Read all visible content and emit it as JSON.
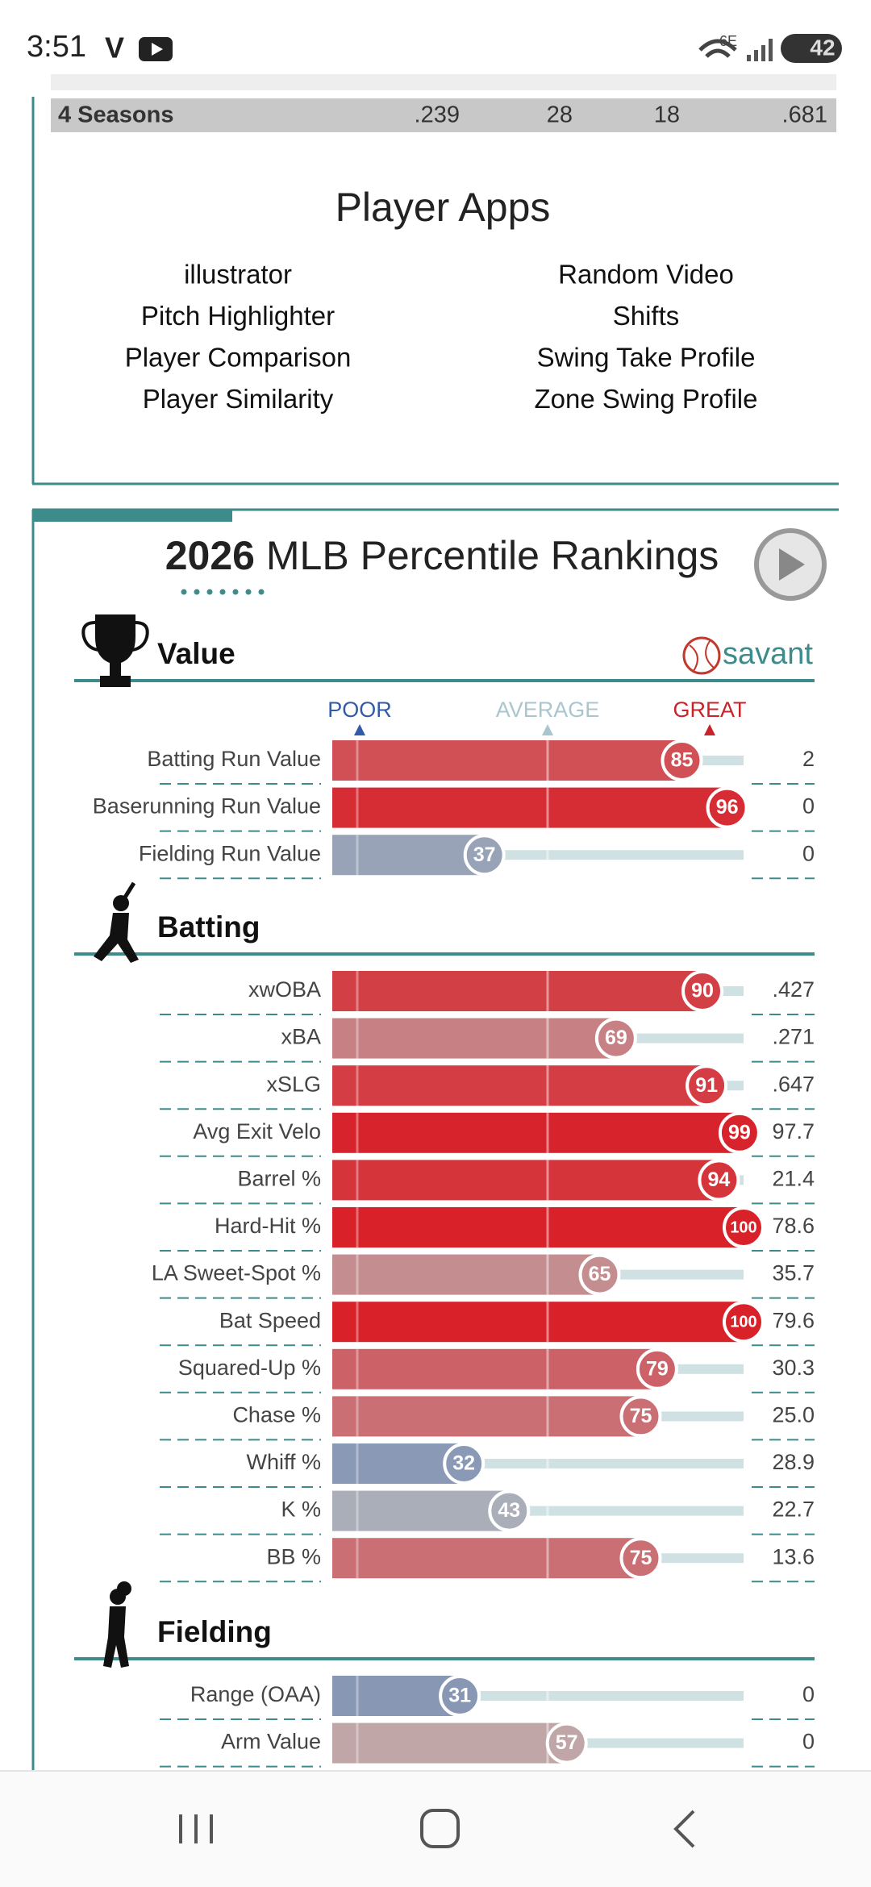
{
  "status_bar": {
    "time": "3:51",
    "network": "6E",
    "battery": "42"
  },
  "stats_table": {
    "row": [
      "4 Seasons",
      ".239",
      "28",
      "18",
      ".681"
    ]
  },
  "player_apps": {
    "title": "Player Apps",
    "left": [
      "illustrator",
      "Pitch Highlighter",
      "Player Comparison",
      "Player Similarity"
    ],
    "right": [
      "Random Video",
      "Shifts",
      "Swing Take Profile",
      "Zone Swing Profile"
    ]
  },
  "percentile_rankings": {
    "year": "2026",
    "title": "MLB Percentile Rankings",
    "brand": "savant",
    "scale": [
      "POOR",
      "AVERAGE",
      "GREAT"
    ],
    "sections": [
      {
        "name": "Value",
        "rows": [
          {
            "label": "Batting Run Value",
            "percentile": 85,
            "stat": "2"
          },
          {
            "label": "Baserunning Run Value",
            "percentile": 96,
            "stat": "0"
          },
          {
            "label": "Fielding Run Value",
            "percentile": 37,
            "stat": "0"
          }
        ]
      },
      {
        "name": "Batting",
        "rows": [
          {
            "label": "xwOBA",
            "percentile": 90,
            "stat": ".427"
          },
          {
            "label": "xBA",
            "percentile": 69,
            "stat": ".271"
          },
          {
            "label": "xSLG",
            "percentile": 91,
            "stat": ".647"
          },
          {
            "label": "Avg Exit Velo",
            "percentile": 99,
            "stat": "97.7"
          },
          {
            "label": "Barrel %",
            "percentile": 94,
            "stat": "21.4"
          },
          {
            "label": "Hard-Hit %",
            "percentile": 100,
            "stat": "78.6"
          },
          {
            "label": "LA Sweet-Spot %",
            "percentile": 65,
            "stat": "35.7"
          },
          {
            "label": "Bat Speed",
            "percentile": 100,
            "stat": "79.6"
          },
          {
            "label": "Squared-Up %",
            "percentile": 79,
            "stat": "30.3"
          },
          {
            "label": "Chase %",
            "percentile": 75,
            "stat": "25.0"
          },
          {
            "label": "Whiff %",
            "percentile": 32,
            "stat": "28.9"
          },
          {
            "label": "K %",
            "percentile": 43,
            "stat": "22.7"
          },
          {
            "label": "BB %",
            "percentile": 75,
            "stat": "13.6"
          }
        ]
      },
      {
        "name": "Fielding",
        "rows": [
          {
            "label": "Range (OAA)",
            "percentile": 31,
            "stat": "0"
          },
          {
            "label": "Arm Value",
            "percentile": 57,
            "stat": "0"
          }
        ]
      }
    ]
  }
}
